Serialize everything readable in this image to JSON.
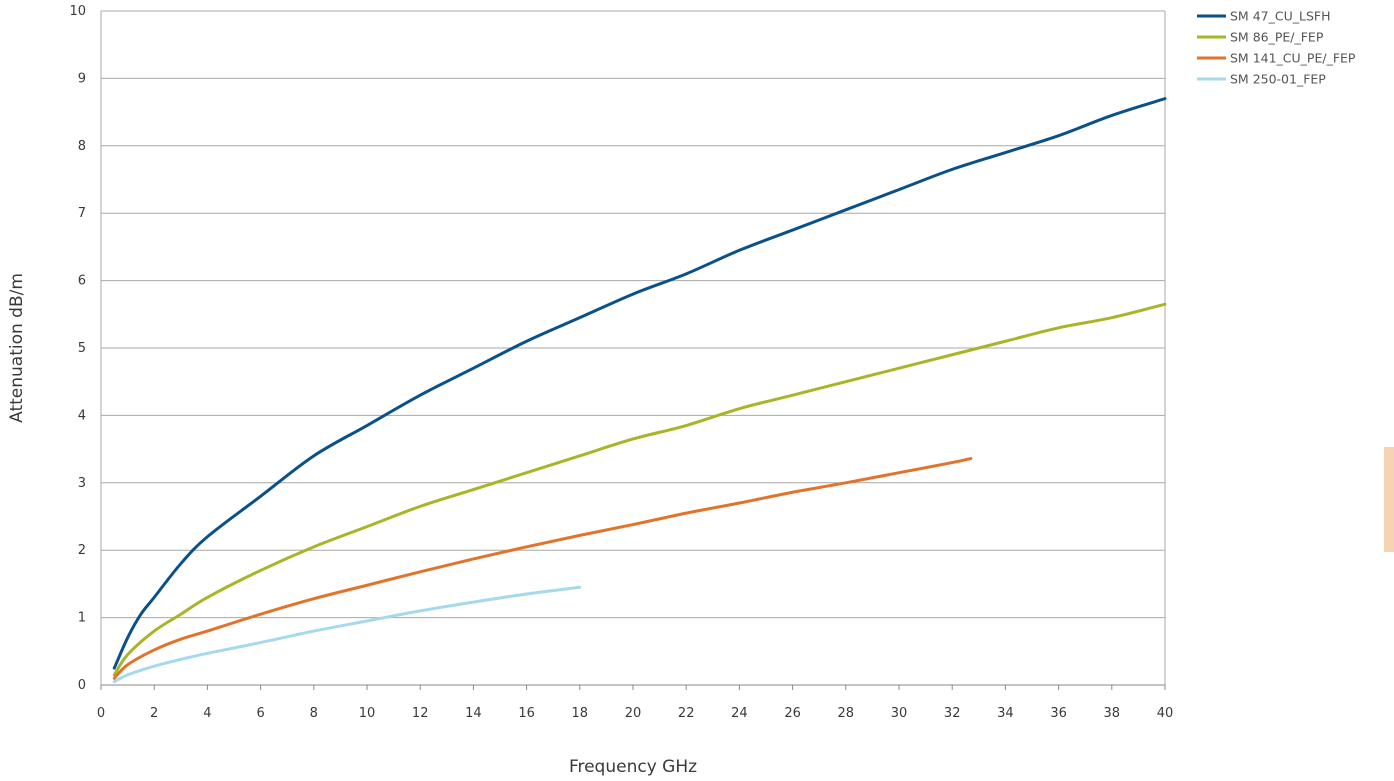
{
  "chart_data": {
    "type": "line",
    "title": "",
    "xlabel": "Frequency GHz",
    "ylabel": "Attenuation dB/m",
    "xlim": [
      0,
      40
    ],
    "ylim": [
      0,
      10
    ],
    "xticks": [
      0,
      2,
      4,
      6,
      8,
      10,
      12,
      14,
      16,
      18,
      20,
      22,
      24,
      26,
      28,
      30,
      32,
      34,
      36,
      38,
      40
    ],
    "yticks": [
      0,
      1,
      2,
      3,
      4,
      5,
      6,
      7,
      8,
      9,
      10
    ],
    "grid": "horizontal",
    "legend_position": "top-right",
    "series": [
      {
        "name": "SM 47_CU_LSFH",
        "color": "#0a5089",
        "x": [
          0.5,
          1,
          1.5,
          2,
          3,
          4,
          6,
          8,
          10,
          12,
          14,
          16,
          18,
          20,
          22,
          24,
          26,
          28,
          30,
          32,
          34,
          36,
          38,
          40
        ],
        "y": [
          0.25,
          0.7,
          1.05,
          1.3,
          1.8,
          2.2,
          2.8,
          3.4,
          3.85,
          4.3,
          4.7,
          5.1,
          5.45,
          5.8,
          6.1,
          6.45,
          6.75,
          7.05,
          7.35,
          7.65,
          7.9,
          8.15,
          8.45,
          8.7
        ]
      },
      {
        "name": "SM 86_PE/_FEP",
        "color": "#a7b526",
        "x": [
          0.5,
          1,
          2,
          3,
          4,
          6,
          8,
          10,
          12,
          14,
          16,
          18,
          20,
          22,
          24,
          26,
          28,
          30,
          32,
          34,
          36,
          38,
          40
        ],
        "y": [
          0.15,
          0.45,
          0.8,
          1.05,
          1.3,
          1.7,
          2.05,
          2.35,
          2.65,
          2.9,
          3.15,
          3.4,
          3.65,
          3.85,
          4.1,
          4.3,
          4.5,
          4.7,
          4.9,
          5.1,
          5.3,
          5.45,
          5.65
        ]
      },
      {
        "name": "SM 141_CU_PE/_FEP",
        "color": "#e2732b",
        "x": [
          0.5,
          1,
          2,
          3,
          4,
          6,
          8,
          10,
          12,
          14,
          16,
          18,
          20,
          22,
          24,
          26,
          28,
          30,
          32,
          32.7
        ],
        "y": [
          0.1,
          0.3,
          0.52,
          0.68,
          0.8,
          1.05,
          1.28,
          1.48,
          1.68,
          1.87,
          2.05,
          2.22,
          2.38,
          2.55,
          2.7,
          2.86,
          3.0,
          3.15,
          3.3,
          3.36
        ]
      },
      {
        "name": "SM 250-01_FEP",
        "color": "#a6d8ee",
        "x": [
          0.5,
          1,
          2,
          3,
          4,
          6,
          8,
          10,
          12,
          14,
          16,
          18
        ],
        "y": [
          0.05,
          0.15,
          0.28,
          0.38,
          0.47,
          0.63,
          0.8,
          0.95,
          1.1,
          1.23,
          1.35,
          1.45
        ]
      }
    ]
  },
  "decor": {
    "side_tab_color": "#f6d4b2"
  }
}
